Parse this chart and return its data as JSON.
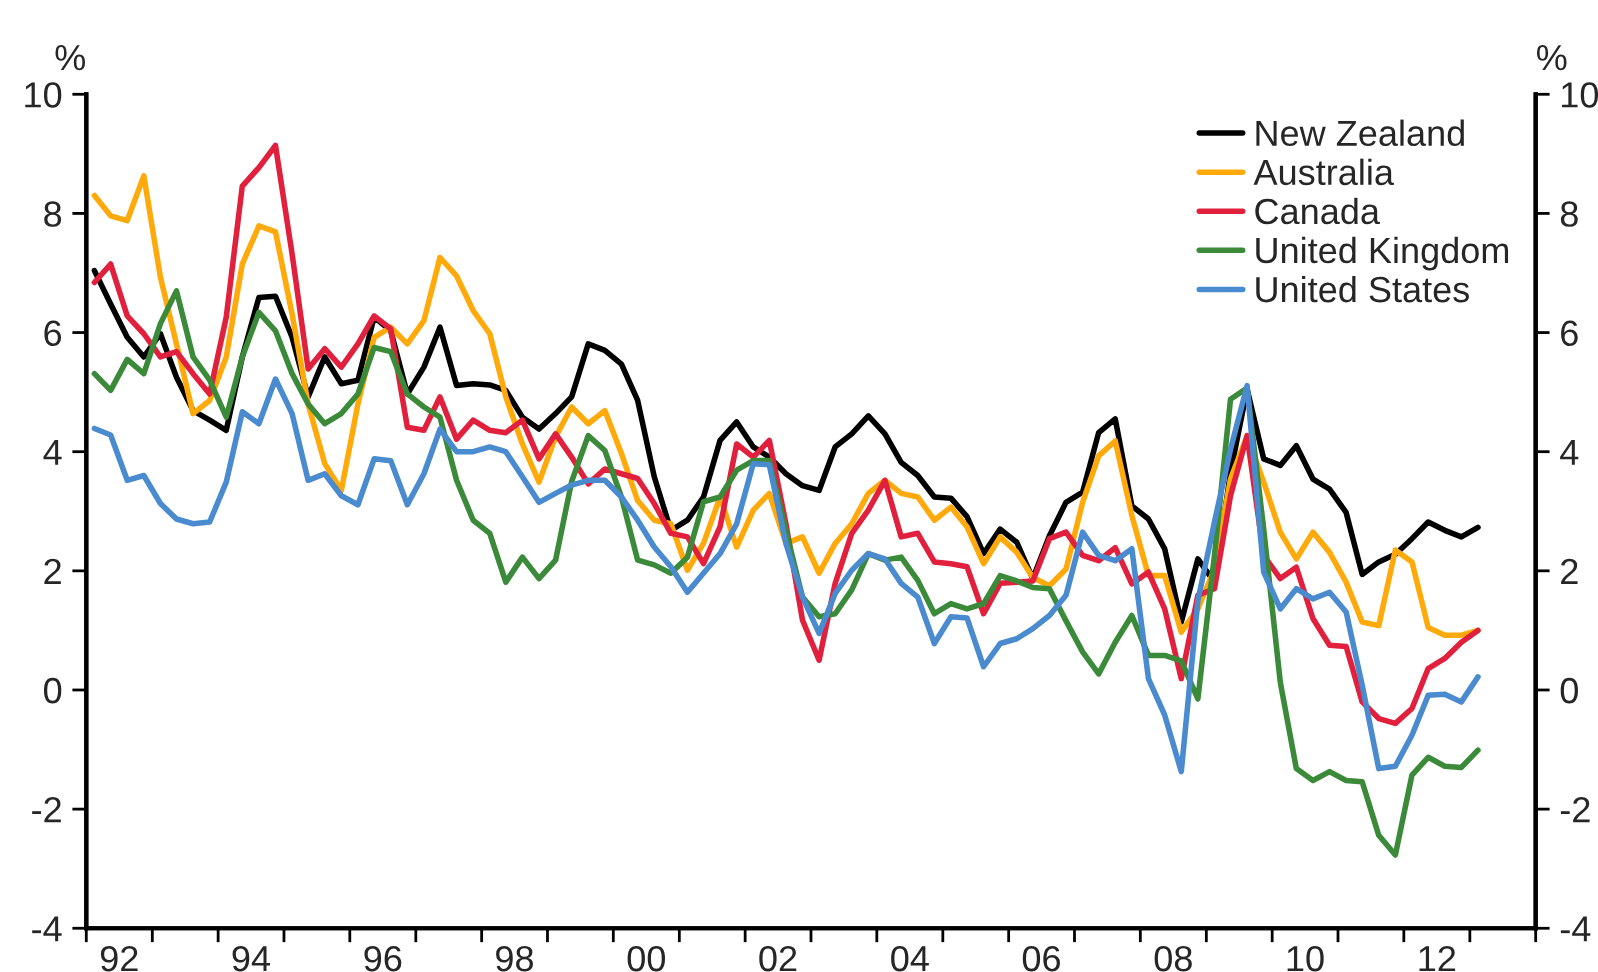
{
  "chart_data": {
    "type": "line",
    "ylabel": "%",
    "y2label": "%",
    "x": [
      "1992-02-15",
      "1992-05-15",
      "1992-08-15",
      "1992-11-15",
      "1993-02-15",
      "1993-05-15",
      "1993-08-15",
      "1993-11-15",
      "1994-02-15",
      "1994-05-15",
      "1994-08-15",
      "1994-11-15",
      "1995-02-15",
      "1995-05-15",
      "1995-08-15",
      "1995-11-15",
      "1996-02-15",
      "1996-05-15",
      "1996-08-15",
      "1996-11-15",
      "1997-02-15",
      "1997-05-15",
      "1997-08-15",
      "1997-11-15",
      "1998-02-15",
      "1998-05-15",
      "1998-08-15",
      "1998-11-15",
      "1999-02-15",
      "1999-05-15",
      "1999-08-15",
      "1999-11-15",
      "2000-02-15",
      "2000-05-15",
      "2000-08-15",
      "2000-11-15",
      "2001-02-15",
      "2001-05-15",
      "2001-08-15",
      "2001-11-15",
      "2002-02-15",
      "2002-05-15",
      "2002-08-15",
      "2002-11-15",
      "2003-02-15",
      "2003-05-15",
      "2003-08-15",
      "2003-11-15",
      "2004-02-15",
      "2004-05-15",
      "2004-08-15",
      "2004-11-15",
      "2005-02-15",
      "2005-05-15",
      "2005-08-15",
      "2005-11-15",
      "2006-02-15",
      "2006-05-15",
      "2006-08-15",
      "2006-11-15",
      "2007-02-15",
      "2007-05-15",
      "2007-08-15",
      "2007-11-15",
      "2008-02-15",
      "2008-05-15",
      "2008-08-15",
      "2008-11-15",
      "2009-02-15",
      "2009-05-15",
      "2009-08-15",
      "2009-11-15",
      "2010-02-15",
      "2010-05-15",
      "2010-08-15",
      "2010-11-15",
      "2011-02-15",
      "2011-05-15",
      "2011-08-15",
      "2011-11-15",
      "2012-02-15",
      "2012-05-15",
      "2012-08-15",
      "2012-11-15",
      "2013-02-15"
    ],
    "series": [
      {
        "name": "New Zealand",
        "color": "#000000",
        "values": [
          7.04,
          6.48,
          5.92,
          5.59,
          5.98,
          5.25,
          4.69,
          4.53,
          4.36,
          5.59,
          6.59,
          6.61,
          5.92,
          4.92,
          5.59,
          5.14,
          5.2,
          6.26,
          6.03,
          4.97,
          5.42,
          6.09,
          5.11,
          5.14,
          5.12,
          5.03,
          4.58,
          4.38,
          4.64,
          4.92,
          5.81,
          5.7,
          5.47,
          4.86,
          3.58,
          2.68,
          2.85,
          3.24,
          4.19,
          4.5,
          4.08,
          3.91,
          3.63,
          3.43,
          3.35,
          4.08,
          4.3,
          4.6,
          4.3,
          3.82,
          3.6,
          3.24,
          3.22,
          2.91,
          2.29,
          2.7,
          2.48,
          1.87,
          2.59,
          3.15,
          3.32,
          4.32,
          4.55,
          3.09,
          2.87,
          2.37,
          1.14,
          2.2,
          1.81,
          3.65,
          5.05,
          3.88,
          3.77,
          4.1,
          3.54,
          3.37,
          2.98,
          1.94,
          2.15,
          2.28,
          2.54,
          2.82,
          2.68,
          2.57,
          2.73
        ]
      },
      {
        "name": "Australia",
        "color": "#ffa90a",
        "values": [
          8.3,
          7.96,
          7.88,
          8.63,
          6.93,
          5.81,
          4.64,
          4.86,
          5.59,
          7.15,
          7.79,
          7.69,
          6.31,
          4.8,
          3.8,
          3.35,
          4.8,
          5.92,
          6.09,
          5.81,
          6.2,
          7.26,
          6.95,
          6.37,
          5.98,
          4.92,
          4.13,
          3.49,
          4.25,
          4.75,
          4.47,
          4.69,
          3.97,
          3.18,
          2.85,
          2.79,
          2.01,
          2.46,
          3.24,
          2.4,
          3.02,
          3.3,
          2.46,
          2.57,
          1.96,
          2.46,
          2.79,
          3.3,
          3.52,
          3.3,
          3.24,
          2.85,
          3.07,
          2.74,
          2.12,
          2.57,
          2.31,
          1.89,
          1.75,
          2.03,
          3.15,
          3.93,
          4.18,
          2.93,
          1.92,
          1.92,
          0.97,
          1.36,
          2.03,
          3.54,
          4.27,
          3.49,
          2.65,
          2.2,
          2.65,
          2.31,
          1.81,
          1.14,
          1.08,
          2.35,
          2.15,
          1.05,
          0.92,
          0.92,
          1.0
        ]
      },
      {
        "name": "Canada",
        "color": "#e0203c",
        "values": [
          6.84,
          7.15,
          6.28,
          5.98,
          5.59,
          5.68,
          5.31,
          4.97,
          6.26,
          8.46,
          8.77,
          9.14,
          7.32,
          5.39,
          5.73,
          5.42,
          5.81,
          6.28,
          6.06,
          4.41,
          4.36,
          4.92,
          4.21,
          4.53,
          4.36,
          4.32,
          4.53,
          3.88,
          4.3,
          3.91,
          3.46,
          3.71,
          3.63,
          3.55,
          3.13,
          2.63,
          2.57,
          2.12,
          2.74,
          4.13,
          3.91,
          4.19,
          2.79,
          1.17,
          0.5,
          1.79,
          2.63,
          3.02,
          3.52,
          2.57,
          2.63,
          2.15,
          2.12,
          2.07,
          1.28,
          1.79,
          1.81,
          1.83,
          2.54,
          2.65,
          2.26,
          2.17,
          2.39,
          1.78,
          1.98,
          1.36,
          0.19,
          1.59,
          1.7,
          3.26,
          4.27,
          2.26,
          1.87,
          2.06,
          1.2,
          0.75,
          0.73,
          -0.2,
          -0.48,
          -0.56,
          -0.31,
          0.36,
          0.53,
          0.8,
          1.0
        ]
      },
      {
        "name": "United Kingdom",
        "color": "#3a8a3a",
        "values": [
          5.31,
          5.03,
          5.55,
          5.31,
          6.15,
          6.7,
          5.59,
          5.2,
          4.58,
          5.59,
          6.34,
          6.03,
          5.31,
          4.8,
          4.47,
          4.64,
          4.97,
          5.75,
          5.68,
          4.97,
          4.75,
          4.58,
          3.52,
          2.85,
          2.63,
          1.81,
          2.23,
          1.87,
          2.18,
          3.5,
          4.27,
          4.02,
          3.24,
          2.18,
          2.1,
          1.96,
          2.23,
          3.16,
          3.24,
          3.69,
          3.85,
          3.85,
          2.68,
          1.56,
          1.23,
          1.28,
          1.68,
          2.29,
          2.18,
          2.23,
          1.84,
          1.28,
          1.45,
          1.36,
          1.45,
          1.92,
          1.83,
          1.72,
          1.7,
          1.16,
          0.64,
          0.27,
          0.8,
          1.25,
          0.58,
          0.58,
          0.49,
          -0.15,
          2.26,
          4.88,
          5.07,
          2.7,
          0.13,
          -1.32,
          -1.52,
          -1.37,
          -1.52,
          -1.54,
          -2.44,
          -2.77,
          -1.43,
          -1.13,
          -1.28,
          -1.3,
          -1.01
        ]
      },
      {
        "name": "United States",
        "color": "#4a8acf",
        "values": [
          4.39,
          4.28,
          3.52,
          3.6,
          3.13,
          2.87,
          2.79,
          2.82,
          3.49,
          4.67,
          4.47,
          5.22,
          4.64,
          3.52,
          3.63,
          3.26,
          3.11,
          3.88,
          3.85,
          3.11,
          3.63,
          4.38,
          4.0,
          4.0,
          4.08,
          4.0,
          3.58,
          3.15,
          3.3,
          3.44,
          3.52,
          3.52,
          3.24,
          2.85,
          2.4,
          2.07,
          1.64,
          1.96,
          2.29,
          2.79,
          3.8,
          3.78,
          2.46,
          1.56,
          0.95,
          1.62,
          2.01,
          2.29,
          2.2,
          1.79,
          1.56,
          0.78,
          1.23,
          1.21,
          0.39,
          0.78,
          0.86,
          1.03,
          1.25,
          1.59,
          2.65,
          2.26,
          2.17,
          2.37,
          0.19,
          -0.42,
          -1.37,
          1.5,
          2.82,
          4.04,
          5.11,
          1.98,
          1.36,
          1.7,
          1.53,
          1.64,
          1.31,
          0.08,
          -1.32,
          -1.28,
          -0.76,
          -0.09,
          -0.07,
          -0.2,
          0.22
        ]
      }
    ],
    "xlim": [
      "1992-01-01",
      "2014-01-01"
    ],
    "xticks": [
      {
        "value": "1992-01-01",
        "label": null
      },
      {
        "value": "1992-07-02",
        "label": "92"
      },
      {
        "value": "1993-01-01",
        "label": null
      },
      {
        "value": "1994-01-01",
        "label": null
      },
      {
        "value": "1994-07-02",
        "label": "94"
      },
      {
        "value": "1995-01-01",
        "label": null
      },
      {
        "value": "1996-01-01",
        "label": null
      },
      {
        "value": "1996-07-02",
        "label": "96"
      },
      {
        "value": "1997-01-01",
        "label": null
      },
      {
        "value": "1998-01-01",
        "label": null
      },
      {
        "value": "1998-07-02",
        "label": "98"
      },
      {
        "value": "1999-01-01",
        "label": null
      },
      {
        "value": "2000-01-01",
        "label": null
      },
      {
        "value": "2000-07-02",
        "label": "00"
      },
      {
        "value": "2001-01-01",
        "label": null
      },
      {
        "value": "2002-01-01",
        "label": null
      },
      {
        "value": "2002-07-02",
        "label": "02"
      },
      {
        "value": "2003-01-01",
        "label": null
      },
      {
        "value": "2004-01-01",
        "label": null
      },
      {
        "value": "2004-07-02",
        "label": "04"
      },
      {
        "value": "2005-01-01",
        "label": null
      },
      {
        "value": "2006-01-01",
        "label": null
      },
      {
        "value": "2006-07-02",
        "label": "06"
      },
      {
        "value": "2007-01-01",
        "label": null
      },
      {
        "value": "2008-01-01",
        "label": null
      },
      {
        "value": "2008-07-02",
        "label": "08"
      },
      {
        "value": "2009-01-01",
        "label": null
      },
      {
        "value": "2010-01-01",
        "label": null
      },
      {
        "value": "2010-07-02",
        "label": "10"
      },
      {
        "value": "2011-01-01",
        "label": null
      },
      {
        "value": "2012-01-01",
        "label": null
      },
      {
        "value": "2012-07-02",
        "label": "12"
      },
      {
        "value": "2013-01-01",
        "label": null
      },
      {
        "value": "2014-01-01",
        "label": null
      }
    ],
    "ylim": [
      -4,
      10
    ],
    "yticks": [
      -4,
      -2,
      0,
      2,
      4,
      6,
      8,
      10
    ],
    "y2lim": [
      -4,
      10
    ],
    "y2ticks": [
      -4,
      -2,
      0,
      2,
      4,
      6,
      8,
      10
    ],
    "legend": "top right",
    "grid": false,
    "marker": "none",
    "line_style": "solid"
  }
}
